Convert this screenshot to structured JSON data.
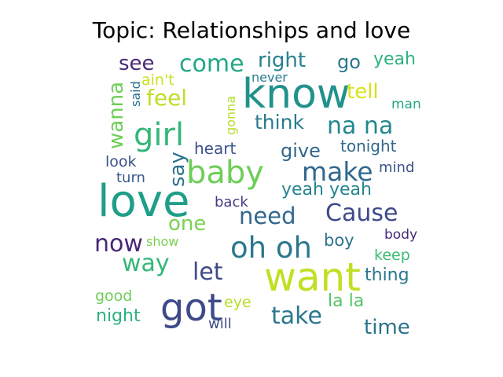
{
  "chart_data": {
    "type": "wordcloud",
    "title": "Topic: Relationships and love",
    "words": [
      {
        "text": "know",
        "weight": 52,
        "color": "#21918c",
        "rotate": 0
      },
      {
        "text": "love",
        "weight": 56,
        "color": "#1f9e89",
        "rotate": 0
      },
      {
        "text": "want",
        "weight": 50,
        "color": "#c2df23",
        "rotate": 0
      },
      {
        "text": "got",
        "weight": 48,
        "color": "#3e4a89",
        "rotate": 0
      },
      {
        "text": "baby",
        "weight": 40,
        "color": "#6ece58",
        "rotate": 0
      },
      {
        "text": "girl",
        "weight": 40,
        "color": "#35b779",
        "rotate": 0
      },
      {
        "text": "oh oh",
        "weight": 37,
        "color": "#2a788e",
        "rotate": 0
      },
      {
        "text": "make",
        "weight": 33,
        "color": "#31688e",
        "rotate": 0
      },
      {
        "text": "na na",
        "weight": 30,
        "color": "#23888e",
        "rotate": 0
      },
      {
        "text": "come",
        "weight": 30,
        "color": "#22a884",
        "rotate": 0
      },
      {
        "text": "Cause",
        "weight": 30,
        "color": "#3e4a89",
        "rotate": 0
      },
      {
        "text": "need",
        "weight": 29,
        "color": "#31688e",
        "rotate": 0
      },
      {
        "text": "take",
        "weight": 30,
        "color": "#2a788e",
        "rotate": 0
      },
      {
        "text": "now",
        "weight": 30,
        "color": "#482878",
        "rotate": 0
      },
      {
        "text": "let",
        "weight": 30,
        "color": "#3e4a89",
        "rotate": 0
      },
      {
        "text": "way",
        "weight": 30,
        "color": "#35b779",
        "rotate": 0
      },
      {
        "text": "feel",
        "weight": 28,
        "color": "#bddf26",
        "rotate": 0
      },
      {
        "text": "see",
        "weight": 26,
        "color": "#482878",
        "rotate": 0
      },
      {
        "text": "right",
        "weight": 26,
        "color": "#26828e",
        "rotate": 0
      },
      {
        "text": "tell",
        "weight": 26,
        "color": "#d8e219",
        "rotate": 0
      },
      {
        "text": "time",
        "weight": 26,
        "color": "#2c728e",
        "rotate": 0
      },
      {
        "text": "one",
        "weight": 26,
        "color": "#7ad151",
        "rotate": 0
      },
      {
        "text": "say",
        "weight": 26,
        "color": "#2c728e",
        "rotate": -90
      },
      {
        "text": "wanna",
        "weight": 26,
        "color": "#6ece58",
        "rotate": -90
      },
      {
        "text": "think",
        "weight": 25,
        "color": "#287c8e",
        "rotate": 0
      },
      {
        "text": "give",
        "weight": 24,
        "color": "#31688e",
        "rotate": 0
      },
      {
        "text": "go",
        "weight": 24,
        "color": "#2a788e",
        "rotate": 0
      },
      {
        "text": "yeah yeah",
        "weight": 22,
        "color": "#25848e",
        "rotate": 0
      },
      {
        "text": "yeah",
        "weight": 22,
        "color": "#2eb37c",
        "rotate": 0
      },
      {
        "text": "la la",
        "weight": 22,
        "color": "#54c568",
        "rotate": 0
      },
      {
        "text": "night",
        "weight": 22,
        "color": "#2db27d",
        "rotate": 0
      },
      {
        "text": "thing",
        "weight": 22,
        "color": "#2a788e",
        "rotate": 0
      },
      {
        "text": "boy",
        "weight": 21,
        "color": "#2c728e",
        "rotate": 0
      },
      {
        "text": "tonight",
        "weight": 20,
        "color": "#31688e",
        "rotate": 0
      },
      {
        "text": "heart",
        "weight": 20,
        "color": "#3b528b",
        "rotate": 0
      },
      {
        "text": "look",
        "weight": 19,
        "color": "#3b528b",
        "rotate": 0
      },
      {
        "text": "ain't",
        "weight": 19,
        "color": "#cae11f",
        "rotate": 0
      },
      {
        "text": "keep",
        "weight": 19,
        "color": "#3bbb75",
        "rotate": 0
      },
      {
        "text": "good",
        "weight": 19,
        "color": "#6ece58",
        "rotate": 0
      },
      {
        "text": "eye",
        "weight": 19,
        "color": "#b5de2b",
        "rotate": 0
      },
      {
        "text": "mind",
        "weight": 18,
        "color": "#3b528b",
        "rotate": 0
      },
      {
        "text": "turn",
        "weight": 18,
        "color": "#38588c",
        "rotate": 0
      },
      {
        "text": "back",
        "weight": 18,
        "color": "#443a83",
        "rotate": 0
      },
      {
        "text": "will",
        "weight": 18,
        "color": "#3e4a89",
        "rotate": 0
      },
      {
        "text": "man",
        "weight": 17,
        "color": "#22a884",
        "rotate": 0
      },
      {
        "text": "body",
        "weight": 17,
        "color": "#482878",
        "rotate": 0
      },
      {
        "text": "never",
        "weight": 16,
        "color": "#287c8e",
        "rotate": 0
      },
      {
        "text": "show",
        "weight": 16,
        "color": "#7ad151",
        "rotate": 0
      },
      {
        "text": "gonna",
        "weight": 16,
        "color": "#b5de2b",
        "rotate": -90
      },
      {
        "text": "said",
        "weight": 16,
        "color": "#2c728e",
        "rotate": -90
      }
    ]
  }
}
